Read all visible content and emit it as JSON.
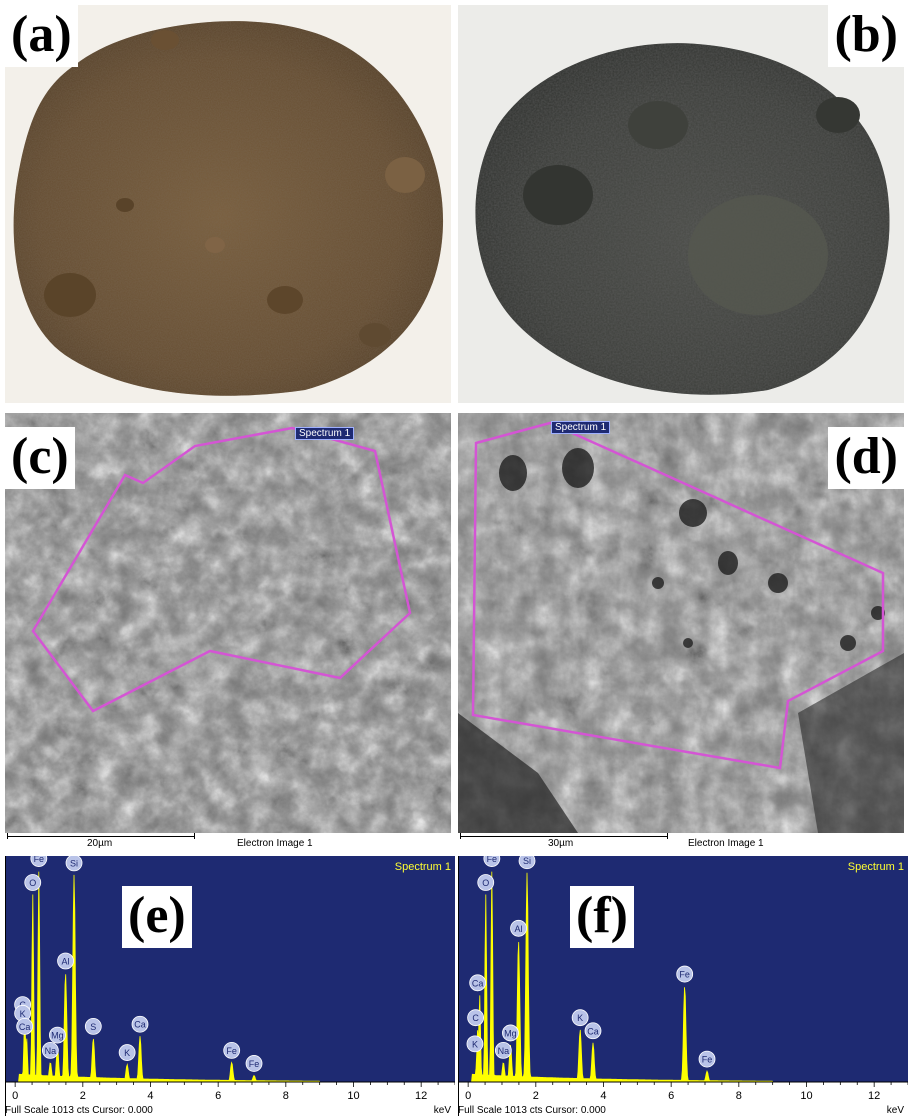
{
  "panels": {
    "a": {
      "label": "(a)"
    },
    "b": {
      "label": "(b)"
    },
    "c": {
      "label": "(c)",
      "spectrum_label": "Spectrum 1",
      "scale_text": "20µm",
      "image_text": "Electron Image 1"
    },
    "d": {
      "label": "(d)",
      "spectrum_label": "Spectrum 1",
      "scale_text": "30µm",
      "image_text": "Electron Image 1"
    },
    "e": {
      "label": "(e)",
      "title": "Spectrum 1",
      "footer": "Full Scale 1013 cts Cursor: 0.000",
      "unit": "keV"
    },
    "f": {
      "label": "(f)",
      "title": "Spectrum 1",
      "footer": "Full Scale 1013 cts Cursor: 0.000",
      "unit": "keV"
    }
  },
  "chart_data": [
    {
      "type": "line",
      "panel": "e",
      "title": "Spectrum 1",
      "xlabel": "keV",
      "xlim": [
        -0.3,
        13
      ],
      "xticks": [
        "0",
        "2",
        "4",
        "6",
        "8",
        "10",
        "12"
      ],
      "peaks": [
        {
          "element": "C",
          "x": 0.28,
          "y": 0.3
        },
        {
          "element": "K",
          "x": 0.28,
          "y": 0.26
        },
        {
          "element": "Ca",
          "x": 0.34,
          "y": 0.2
        },
        {
          "element": "O",
          "x": 0.52,
          "y": 0.86
        },
        {
          "element": "Fe",
          "x": 0.7,
          "y": 0.97
        },
        {
          "element": "Na",
          "x": 1.04,
          "y": 0.09
        },
        {
          "element": "Mg",
          "x": 1.25,
          "y": 0.16
        },
        {
          "element": "Al",
          "x": 1.49,
          "y": 0.5
        },
        {
          "element": "Si",
          "x": 1.74,
          "y": 0.95
        },
        {
          "element": "S",
          "x": 2.31,
          "y": 0.2
        },
        {
          "element": "K",
          "x": 3.31,
          "y": 0.08
        },
        {
          "element": "Ca",
          "x": 3.69,
          "y": 0.21
        },
        {
          "element": "Fe",
          "x": 6.4,
          "y": 0.09
        },
        {
          "element": "Fe",
          "x": 7.06,
          "y": 0.03
        }
      ]
    },
    {
      "type": "line",
      "panel": "f",
      "title": "Spectrum 1",
      "xlabel": "keV",
      "xlim": [
        -0.3,
        13
      ],
      "xticks": [
        "0",
        "2",
        "4",
        "6",
        "8",
        "10",
        "12"
      ],
      "peaks": [
        {
          "element": "Ca",
          "x": 0.34,
          "y": 0.4
        },
        {
          "element": "C",
          "x": 0.28,
          "y": 0.24
        },
        {
          "element": "K",
          "x": 0.26,
          "y": 0.12
        },
        {
          "element": "O",
          "x": 0.52,
          "y": 0.86
        },
        {
          "element": "Fe",
          "x": 0.7,
          "y": 0.97
        },
        {
          "element": "Na",
          "x": 1.04,
          "y": 0.09
        },
        {
          "element": "Mg",
          "x": 1.25,
          "y": 0.17
        },
        {
          "element": "Al",
          "x": 1.49,
          "y": 0.65
        },
        {
          "element": "Si",
          "x": 1.74,
          "y": 0.96
        },
        {
          "element": "K",
          "x": 3.31,
          "y": 0.24
        },
        {
          "element": "Ca",
          "x": 3.69,
          "y": 0.18
        },
        {
          "element": "Fe",
          "x": 6.4,
          "y": 0.44
        },
        {
          "element": "Fe",
          "x": 7.06,
          "y": 0.05
        }
      ]
    }
  ],
  "colors": {
    "eds_background": "#1e2a72",
    "eds_trace": "#ffff00",
    "region_outline": "#d455d4",
    "powder_a": "#6b5234",
    "powder_b": "#3b3d39"
  }
}
